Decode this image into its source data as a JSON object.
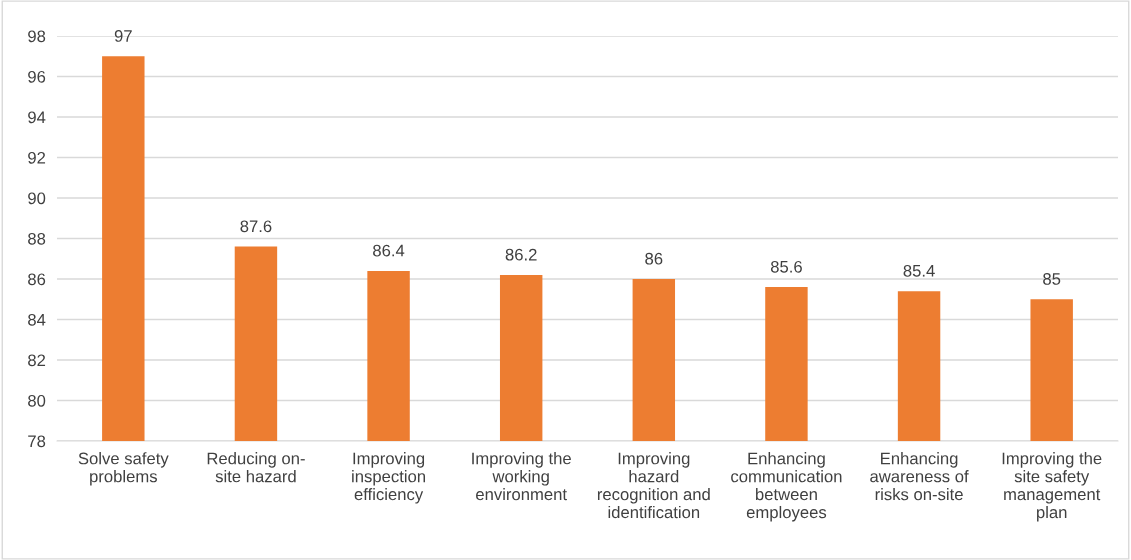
{
  "chart_data": {
    "type": "bar",
    "categories": [
      "Solve safety\nproblems",
      "Reducing on-\nsite hazard",
      "Improving\ninspection\nefficiency",
      "Improving the\nworking\nenvironment",
      "Improving\nhazard\nrecognition and\nidentification",
      "Enhancing\ncommunication\nbetween\nemployees",
      "Enhancing\nawareness of\nrisks on-site",
      "Improving the\nsite safety\nmanagement\nplan"
    ],
    "values": [
      97,
      87.6,
      86.4,
      86.2,
      86,
      85.6,
      85.4,
      85
    ],
    "color": "#ed7d31",
    "ylim": [
      78,
      98
    ],
    "yticks": [
      78,
      80,
      82,
      84,
      86,
      88,
      90,
      92,
      94,
      96,
      98
    ],
    "grid": "y",
    "data_labels": true
  }
}
